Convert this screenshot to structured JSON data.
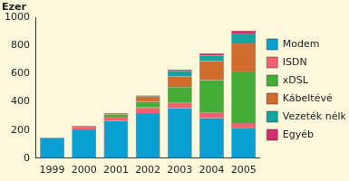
{
  "chart_data": {
    "type": "bar",
    "y_label": "Ezer",
    "categories": [
      "1999",
      "2000",
      "2001",
      "2002",
      "2003",
      "2004",
      "2005"
    ],
    "series": [
      {
        "name": "Modem",
        "color": "#0a9fd2",
        "values": [
          145,
          205,
          265,
          320,
          355,
          285,
          215
        ]
      },
      {
        "name": "ISDN",
        "color": "#f2626e",
        "values": [
          0,
          20,
          30,
          40,
          40,
          40,
          35
        ]
      },
      {
        "name": "xDSL",
        "color": "#43ad35",
        "values": [
          0,
          5,
          15,
          40,
          110,
          230,
          365
        ]
      },
      {
        "name": "Kábeltévé",
        "color": "#d26b2e",
        "values": [
          0,
          0,
          10,
          35,
          75,
          135,
          200
        ]
      },
      {
        "name": "Vezeték nélküli",
        "color": "#13a3a3",
        "values": [
          0,
          0,
          0,
          5,
          40,
          40,
          70
        ]
      },
      {
        "name": "Egyéb",
        "color": "#d0306f",
        "values": [
          0,
          0,
          0,
          5,
          10,
          15,
          20
        ]
      }
    ],
    "stacked": true,
    "ylim": [
      0,
      1000
    ],
    "yticks": [
      0,
      200,
      400,
      600,
      800,
      1000
    ],
    "grid": false,
    "legend": "right"
  }
}
